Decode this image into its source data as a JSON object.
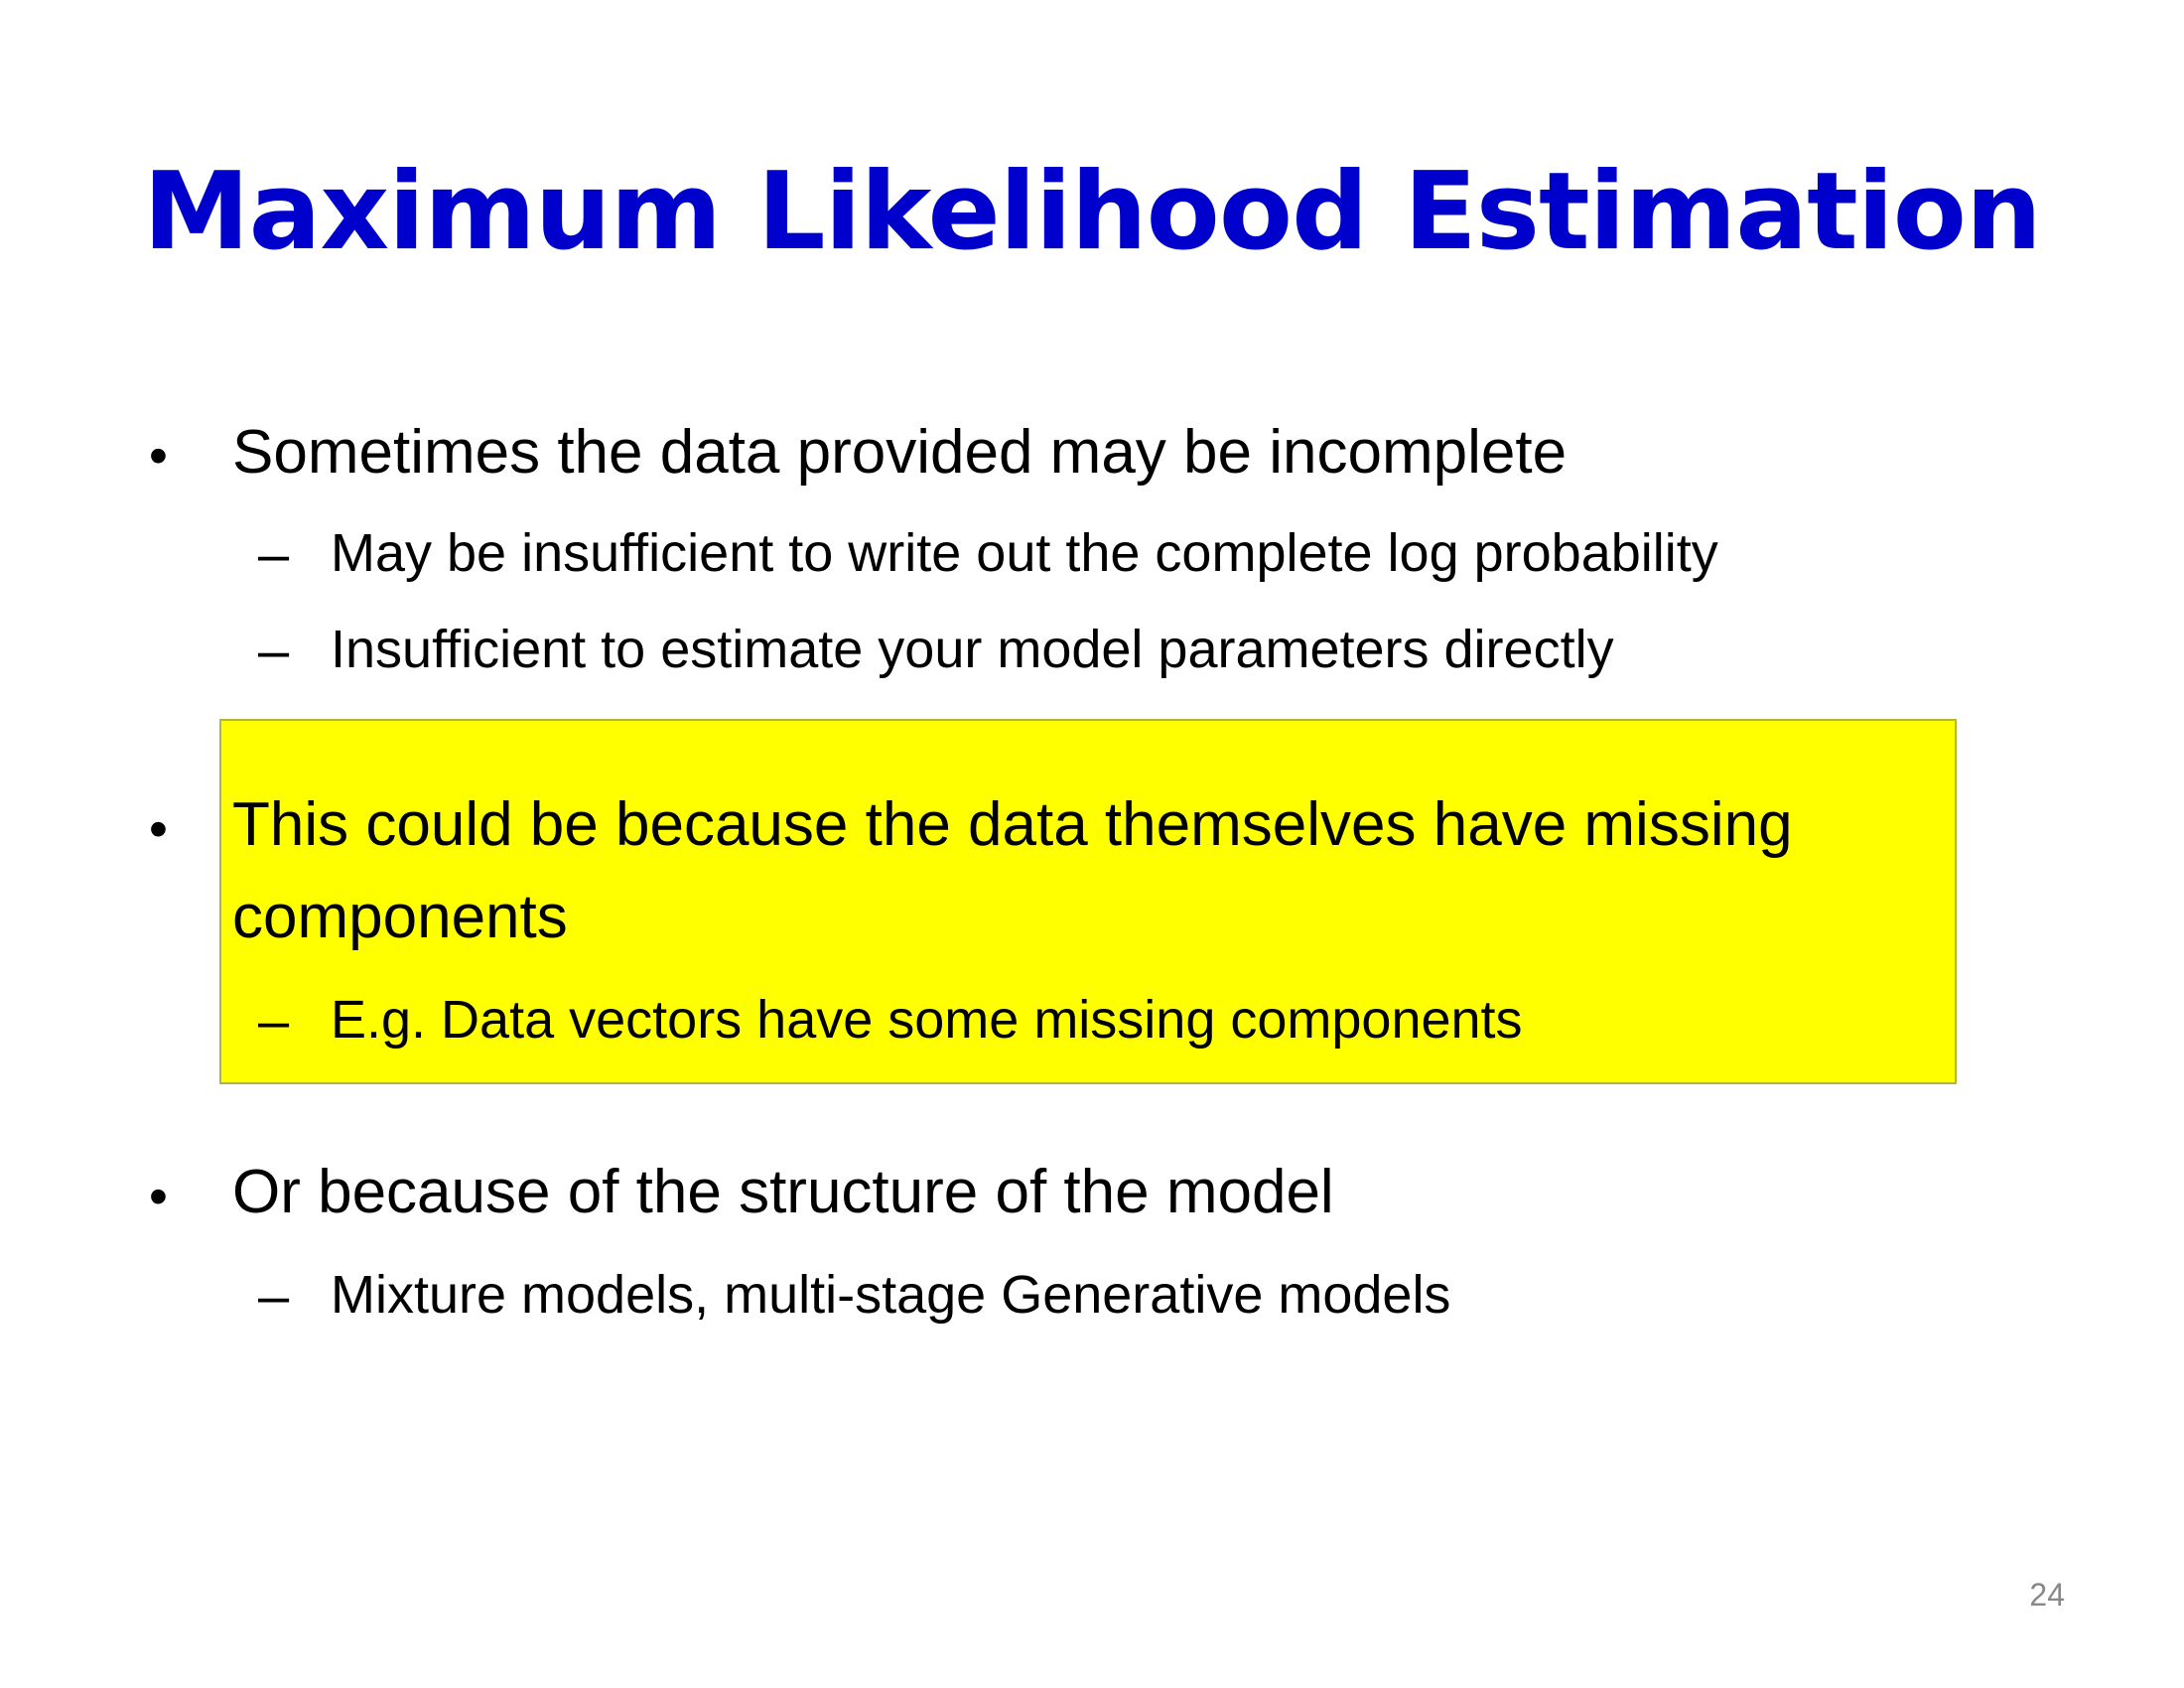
{
  "slide": {
    "title": "Maximum Likelihood Estimation",
    "title_color": "#0000CC",
    "highlight_color": "#FFFF00",
    "bullet_glyph": "•",
    "dash_glyph": "–",
    "bullets": [
      {
        "text": "Sometimes the data provided may be incomplete",
        "sub": [
          "May be insufficient to write out the complete log probability",
          "Insufficient to estimate your model parameters directly"
        ]
      },
      {
        "text_line1": "This could be because the data themselves have missing",
        "text_line2": "components",
        "highlighted": true,
        "sub": [
          "E.g. Data vectors have some missing components"
        ]
      },
      {
        "text": "Or because of the structure of the model",
        "sub": [
          "Mixture models,  multi-stage Generative models"
        ]
      }
    ],
    "page_number": "24"
  }
}
